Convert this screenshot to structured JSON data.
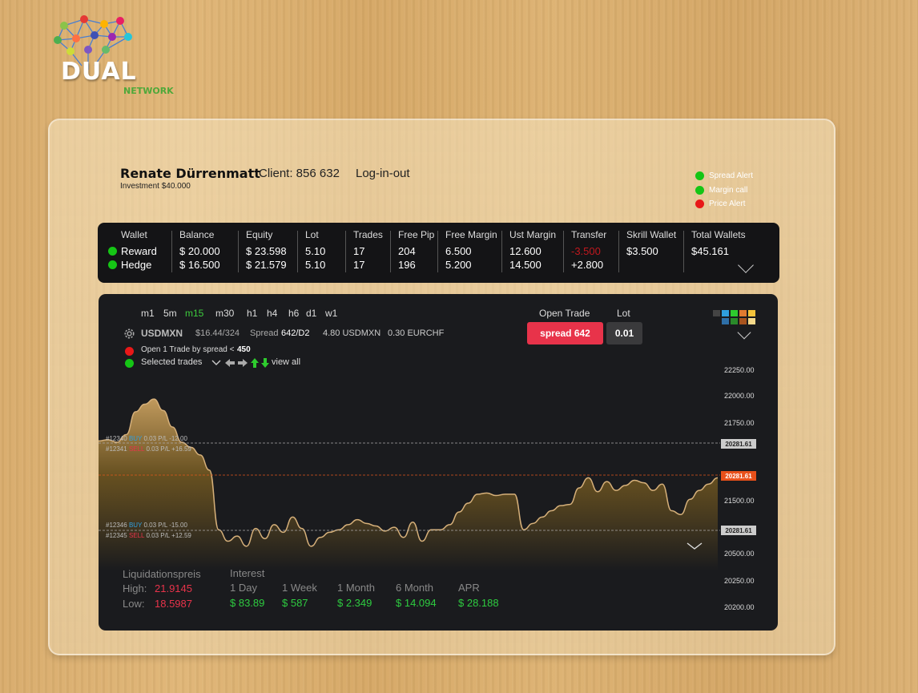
{
  "brand": {
    "name": "DUAL",
    "sub": "NETWORK"
  },
  "user": {
    "name": "Renate Dürrenmatt",
    "client": "Client: 856 632",
    "login": "Log-in-out",
    "investment": "Investment $40.000"
  },
  "alerts": [
    {
      "label": "Spread Alert",
      "color": "#15c515"
    },
    {
      "label": "Margin call",
      "color": "#15c515"
    },
    {
      "label": "Price Alert",
      "color": "#e81818"
    }
  ],
  "wallet": {
    "headers": [
      "Wallet",
      "Balance",
      "Equity",
      "Lot",
      "Trades",
      "Free Pip",
      "Free Margin",
      "Ust Margin",
      "Transfer",
      "Skrill Wallet",
      "Total Wallets"
    ],
    "rows": [
      {
        "name": "Reward",
        "balance": "$ 20.000",
        "equity": "$ 23.598",
        "lot": "5.10",
        "trades": "17",
        "free_pip": "204",
        "free_margin": "6.500",
        "ust_margin": "12.600",
        "transfer": "-3.500"
      },
      {
        "name": "Hedge",
        "balance": "$ 16.500",
        "equity": "$ 21.579",
        "lot": "5.10",
        "trades": "17",
        "free_pip": "196",
        "free_margin": "5.200",
        "ust_margin": "14.500",
        "transfer": "+2.800"
      }
    ],
    "skrill": "$3.500",
    "total": "$45.161"
  },
  "chart": {
    "timeframes": [
      "m1",
      "5m",
      "m15",
      "m30",
      "h1",
      "h4",
      "h6",
      "d1",
      "w1"
    ],
    "active_timeframe": "m15",
    "symbol": "USDMXN",
    "price_info": "$16.44/324",
    "spread_label": "Spread",
    "spread_value": "642/D2",
    "extra1": "4.80 USDMXN",
    "extra2": "0.30 EURCHF",
    "open_trade_label": "Open Trade",
    "lot_label": "Lot",
    "spread_button": "spread 642",
    "lot_value": "0.01",
    "rule_text": "Open 1 Trade by spread <",
    "rule_value": "450",
    "selected_trades": "Selected trades",
    "view_all": "view all",
    "trades": [
      {
        "id": "#12340",
        "side": "BUY",
        "info": "0.03 P/L -12.00"
      },
      {
        "id": "#12341",
        "side": "SELL",
        "info": "0.03 P/L +16.59"
      },
      {
        "id": "#12346",
        "side": "BUY",
        "info": "0.03 P/L -15.00"
      },
      {
        "id": "#12345",
        "side": "SELL",
        "info": "0.03 P/L +12.59"
      }
    ],
    "price_tags": {
      "upper": "20281.61",
      "current": "20281.61",
      "lower": "20281.61"
    }
  },
  "chart_data": {
    "type": "area",
    "y_ticks": [
      "22250.00",
      "22000.00",
      "21750.00",
      "21500.00",
      "20500.00",
      "20250.00",
      "20200.00"
    ],
    "values": [
      21650,
      21660,
      21640,
      21700,
      21880,
      21940,
      21980,
      21890,
      21760,
      21640,
      21600,
      21540,
      21420,
      20950,
      20860,
      20900,
      20820,
      20960,
      20880,
      20990,
      20930,
      21050,
      20960,
      20820,
      20890,
      20930,
      20950,
      20990,
      21030,
      21000,
      20980,
      20940,
      20970,
      20890,
      21010,
      20860,
      20950,
      20950,
      20990,
      21090,
      21160,
      21230,
      21240,
      21220,
      21230,
      21230,
      20950,
      21000,
      21050,
      21100,
      21140,
      21150,
      21280,
      21360,
      21250,
      21330,
      21260,
      21300,
      21340,
      21320,
      21260,
      21310,
      21100,
      21070,
      21190,
      21260,
      21310,
      21360
    ]
  },
  "stats": {
    "liquidation_label": "Liquidationspreis",
    "high_label": "High:",
    "high": "21.9145",
    "low_label": "Low:",
    "low": "18.5987",
    "interest_label": "Interest",
    "periods": [
      {
        "label": "1 Day",
        "value": "$ 83.89"
      },
      {
        "label": "1 Week",
        "value": "$ 587"
      },
      {
        "label": "1 Month",
        "value": "$ 2.349"
      },
      {
        "label": "6 Month",
        "value": "$ 14.094"
      },
      {
        "label": "APR",
        "value": "$ 28.188"
      }
    ]
  }
}
